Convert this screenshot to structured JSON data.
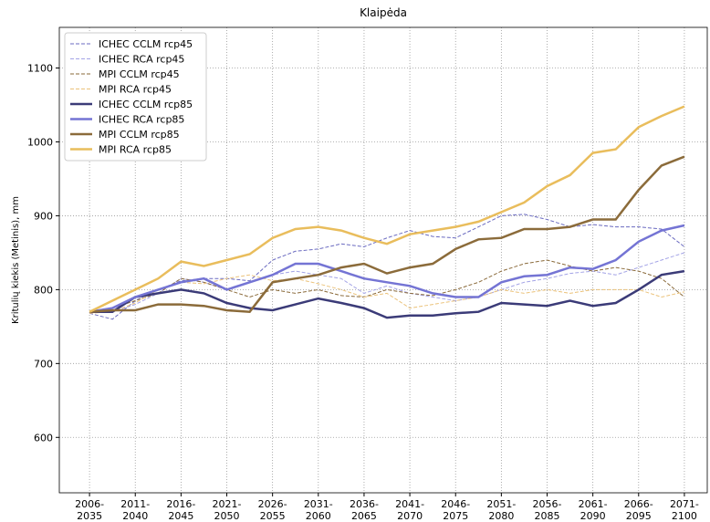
{
  "chart_data": {
    "type": "line",
    "title": "Klaipėda",
    "y_label": "Kritulių kiekis (Metinis), mm",
    "x": [
      2006,
      2008.5,
      2011,
      2013.5,
      2016,
      2018.5,
      2021,
      2023.5,
      2026,
      2028.5,
      2031,
      2033.5,
      2036,
      2038.5,
      2041,
      2043.5,
      2046,
      2048.5,
      2051,
      2053.5,
      2056,
      2058.5,
      2061,
      2063.5,
      2066,
      2068.5,
      2071
    ],
    "xlim": [
      2002.7,
      2073.5
    ],
    "xticks": [
      {
        "value": 2006,
        "label": "2006-2035"
      },
      {
        "value": 2011,
        "label": "2011-2040"
      },
      {
        "value": 2016,
        "label": "2016-2045"
      },
      {
        "value": 2021,
        "label": "2021-2050"
      },
      {
        "value": 2026,
        "label": "2026-2055"
      },
      {
        "value": 2031,
        "label": "2031-2060"
      },
      {
        "value": 2036,
        "label": "2036-2065"
      },
      {
        "value": 2041,
        "label": "2041-2070"
      },
      {
        "value": 2046,
        "label": "2046-2075"
      },
      {
        "value": 2051,
        "label": "2051-2080"
      },
      {
        "value": 2056,
        "label": "2056-2085"
      },
      {
        "value": 2061,
        "label": "2061-2090"
      },
      {
        "value": 2066,
        "label": "2066-2095"
      },
      {
        "value": 2071,
        "label": "2071-2100"
      }
    ],
    "ylim": [
      525,
      1155
    ],
    "yticks": [
      600,
      700,
      800,
      900,
      1000,
      1100
    ],
    "grid": true,
    "legend": "upper left",
    "series": [
      {
        "name": "ICHEC CCLM rcp45",
        "color": "#6a6ac0",
        "dashed": true,
        "width": 1,
        "values": [
          768,
          760,
          785,
          800,
          812,
          815,
          815,
          812,
          840,
          852,
          855,
          862,
          858,
          870,
          880,
          872,
          870,
          885,
          900,
          902,
          895,
          885,
          888,
          885,
          885,
          882,
          858
        ]
      },
      {
        "name": "ICHEC RCA rcp45",
        "color": "#a3a3e6",
        "dashed": true,
        "width": 1,
        "values": [
          770,
          770,
          780,
          795,
          815,
          810,
          800,
          810,
          820,
          825,
          820,
          815,
          795,
          805,
          795,
          790,
          785,
          790,
          800,
          810,
          815,
          822,
          825,
          820,
          830,
          840,
          850
        ]
      },
      {
        "name": "MPI CCLM rcp45",
        "color": "#8a6a3a",
        "dashed": true,
        "width": 1,
        "values": [
          770,
          775,
          785,
          795,
          815,
          810,
          800,
          790,
          800,
          795,
          800,
          792,
          790,
          800,
          795,
          792,
          800,
          810,
          825,
          835,
          840,
          832,
          825,
          830,
          825,
          815,
          790
        ]
      },
      {
        "name": "MPI RCA rcp45",
        "color": "#ebc27a",
        "dashed": true,
        "width": 1,
        "values": [
          768,
          770,
          782,
          800,
          810,
          808,
          815,
          820,
          812,
          815,
          808,
          800,
          790,
          795,
          775,
          780,
          785,
          790,
          800,
          795,
          800,
          795,
          800,
          800,
          800,
          790,
          797
        ]
      },
      {
        "name": "ICHEC CCLM rcp85",
        "color": "#3b3b78",
        "dashed": false,
        "width": 2.5,
        "values": [
          770,
          770,
          790,
          795,
          800,
          795,
          782,
          775,
          772,
          780,
          788,
          782,
          775,
          762,
          765,
          765,
          768,
          770,
          782,
          780,
          778,
          785,
          778,
          782,
          800,
          820,
          825
        ]
      },
      {
        "name": "ICHEC RCA rcp85",
        "color": "#7474d4",
        "dashed": false,
        "width": 2.5,
        "values": [
          770,
          775,
          790,
          800,
          810,
          815,
          800,
          810,
          820,
          835,
          835,
          825,
          815,
          810,
          805,
          795,
          790,
          790,
          810,
          818,
          820,
          830,
          828,
          840,
          865,
          880,
          887
        ]
      },
      {
        "name": "MPI CCLM rcp85",
        "color": "#8b6b3a",
        "dashed": false,
        "width": 2.5,
        "values": [
          770,
          772,
          772,
          780,
          780,
          778,
          772,
          770,
          810,
          815,
          820,
          830,
          835,
          822,
          830,
          835,
          855,
          868,
          870,
          882,
          882,
          885,
          895,
          895,
          935,
          968,
          980
        ]
      },
      {
        "name": "MPI RCA rcp85",
        "color": "#e9bd5c",
        "dashed": false,
        "width": 2.5,
        "values": [
          770,
          785,
          800,
          815,
          838,
          832,
          840,
          848,
          870,
          882,
          885,
          880,
          870,
          862,
          875,
          880,
          885,
          892,
          905,
          918,
          940,
          955,
          985,
          990,
          1020,
          1035,
          1048
        ]
      }
    ]
  }
}
